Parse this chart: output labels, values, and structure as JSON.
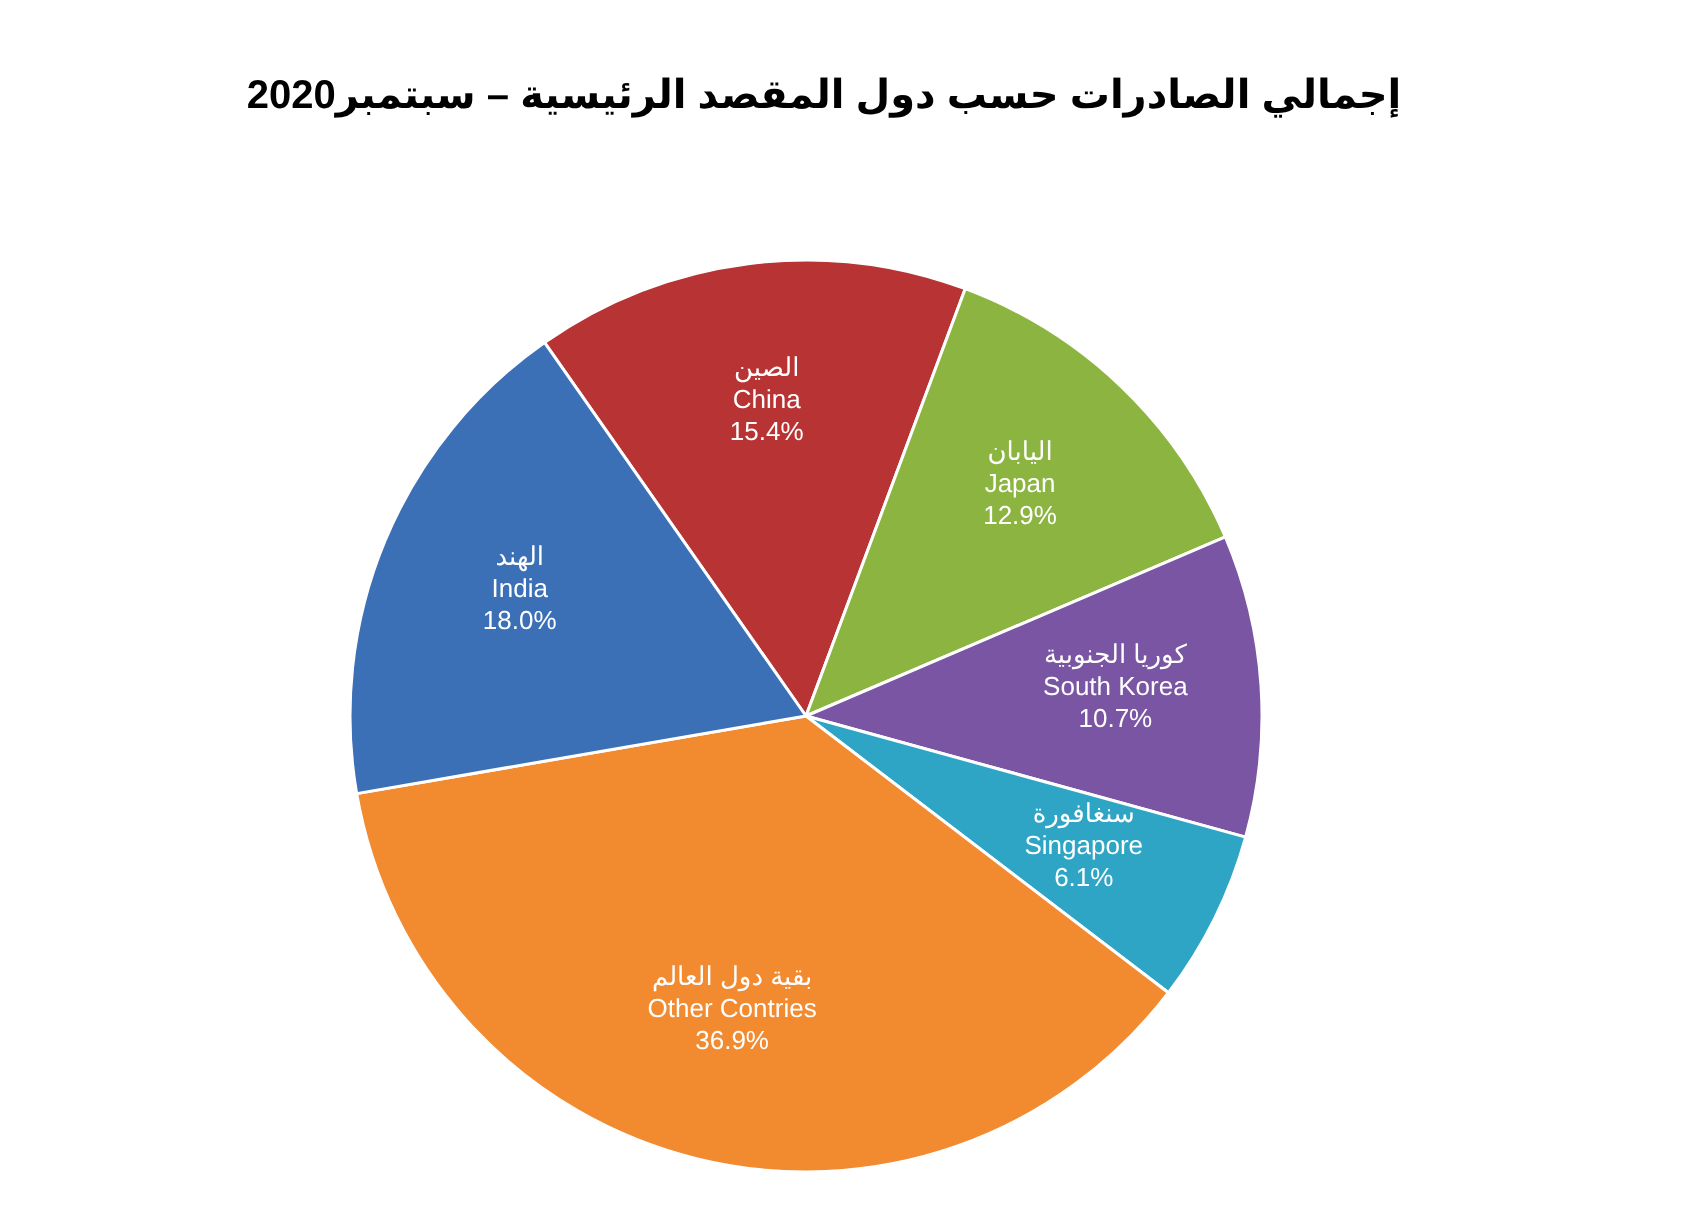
{
  "chart_data": {
    "type": "pie",
    "title": "إجمالي الصادرات حسب دول المقصد الرئيسية – سبتمبر2020",
    "categories": [
      "الصين\nChina",
      "اليابان\nJapan",
      "كوريا الجنوبية\nSouth Korea",
      "سنغافورة\nSingapore",
      "بقية دول العالم\nOther Contries",
      "الهند\nIndia"
    ],
    "values": [
      15.4,
      12.9,
      10.7,
      6.1,
      36.9,
      18.0
    ],
    "value_labels": [
      "15.4%",
      "12.9%",
      "10.7%",
      "6.1%",
      "36.9%",
      "18.0%"
    ],
    "colors": [
      "#b83434",
      "#8cb440",
      "#7a55a3",
      "#2fa5c6",
      "#f28a30",
      "#3c70b6"
    ],
    "legend": false
  }
}
